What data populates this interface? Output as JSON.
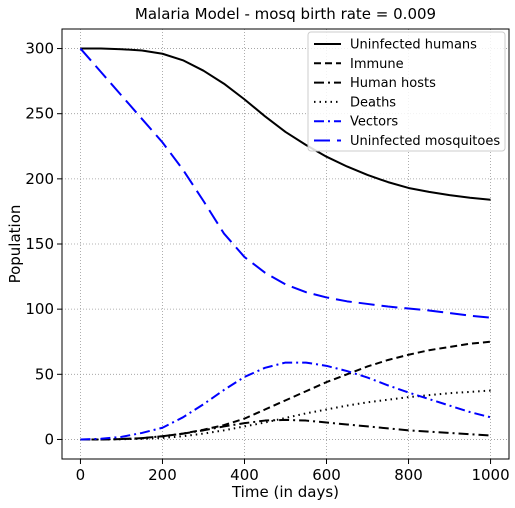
{
  "chart_data": {
    "type": "line",
    "title": "Malaria Model - mosq birth rate = 0.009",
    "xlabel": "Time (in days)",
    "ylabel": "Population",
    "xlim": [
      -45,
      1045
    ],
    "ylim": [
      -15,
      315
    ],
    "xticks": [
      0,
      200,
      400,
      600,
      800,
      1000
    ],
    "yticks": [
      0,
      50,
      100,
      150,
      200,
      250,
      300
    ],
    "grid": true,
    "legend_position": "top-right",
    "series": [
      {
        "name": "Uninfected humans",
        "color": "#000000",
        "style": "solid",
        "x": [
          0,
          50,
          100,
          150,
          200,
          250,
          300,
          350,
          400,
          450,
          500,
          550,
          600,
          650,
          700,
          750,
          800,
          850,
          900,
          950,
          1000
        ],
        "y": [
          300,
          300,
          299.5,
          298.5,
          296,
          291,
          283,
          273,
          261,
          248,
          236,
          226,
          217,
          209.5,
          203,
          197.5,
          193,
          190,
          187.5,
          185.5,
          184
        ]
      },
      {
        "name": "Immune",
        "color": "#000000",
        "style": "dashed",
        "x": [
          0,
          50,
          100,
          150,
          200,
          250,
          300,
          350,
          400,
          450,
          500,
          550,
          600,
          650,
          700,
          750,
          800,
          850,
          900,
          950,
          1000
        ],
        "y": [
          0,
          0,
          0.3,
          1,
          2.5,
          4.5,
          7.5,
          11,
          16,
          23,
          30,
          37,
          44,
          50,
          56,
          61,
          65,
          68.5,
          71,
          73.5,
          75
        ]
      },
      {
        "name": "Human hosts",
        "color": "#000000",
        "style": "dashdot",
        "x": [
          0,
          50,
          100,
          150,
          200,
          250,
          300,
          350,
          400,
          450,
          500,
          550,
          600,
          650,
          700,
          750,
          800,
          850,
          900,
          950,
          1000
        ],
        "y": [
          0,
          0,
          0.3,
          1,
          2.5,
          4.5,
          7,
          10,
          12.5,
          14.5,
          15,
          14.5,
          13,
          11.5,
          10,
          8.5,
          7,
          6,
          5,
          4,
          3
        ]
      },
      {
        "name": "Deaths",
        "color": "#000000",
        "style": "dotted",
        "x": [
          0,
          50,
          100,
          150,
          200,
          250,
          300,
          350,
          400,
          450,
          500,
          550,
          600,
          650,
          700,
          750,
          800,
          850,
          900,
          950,
          1000
        ],
        "y": [
          0,
          0,
          0.2,
          0.5,
          1.2,
          2.5,
          4.5,
          7,
          10,
          13,
          16.5,
          20,
          23,
          26,
          28.5,
          30.5,
          32.5,
          34,
          35.5,
          36.5,
          37.5
        ]
      },
      {
        "name": "Vectors",
        "color": "#0000ff",
        "style": "dashdot",
        "x": [
          0,
          50,
          100,
          150,
          200,
          250,
          300,
          350,
          400,
          450,
          500,
          550,
          600,
          650,
          700,
          750,
          800,
          850,
          900,
          950,
          1000
        ],
        "y": [
          0,
          0.5,
          2,
          5,
          9,
          17,
          27,
          38,
          48,
          55,
          59,
          59,
          56.5,
          52.5,
          47.5,
          41.5,
          36,
          31,
          26,
          21,
          17
        ]
      },
      {
        "name": "Uninfected mosquitoes",
        "color": "#0000ff",
        "style": "longdash",
        "x": [
          0,
          50,
          100,
          150,
          200,
          250,
          300,
          350,
          400,
          450,
          500,
          550,
          600,
          650,
          700,
          750,
          800,
          850,
          900,
          950,
          1000
        ],
        "y": [
          300,
          282,
          264,
          246,
          228,
          207,
          183,
          158,
          140,
          128,
          119,
          113,
          109,
          106,
          104,
          102,
          100.5,
          99,
          97,
          95,
          93.5
        ]
      }
    ]
  }
}
